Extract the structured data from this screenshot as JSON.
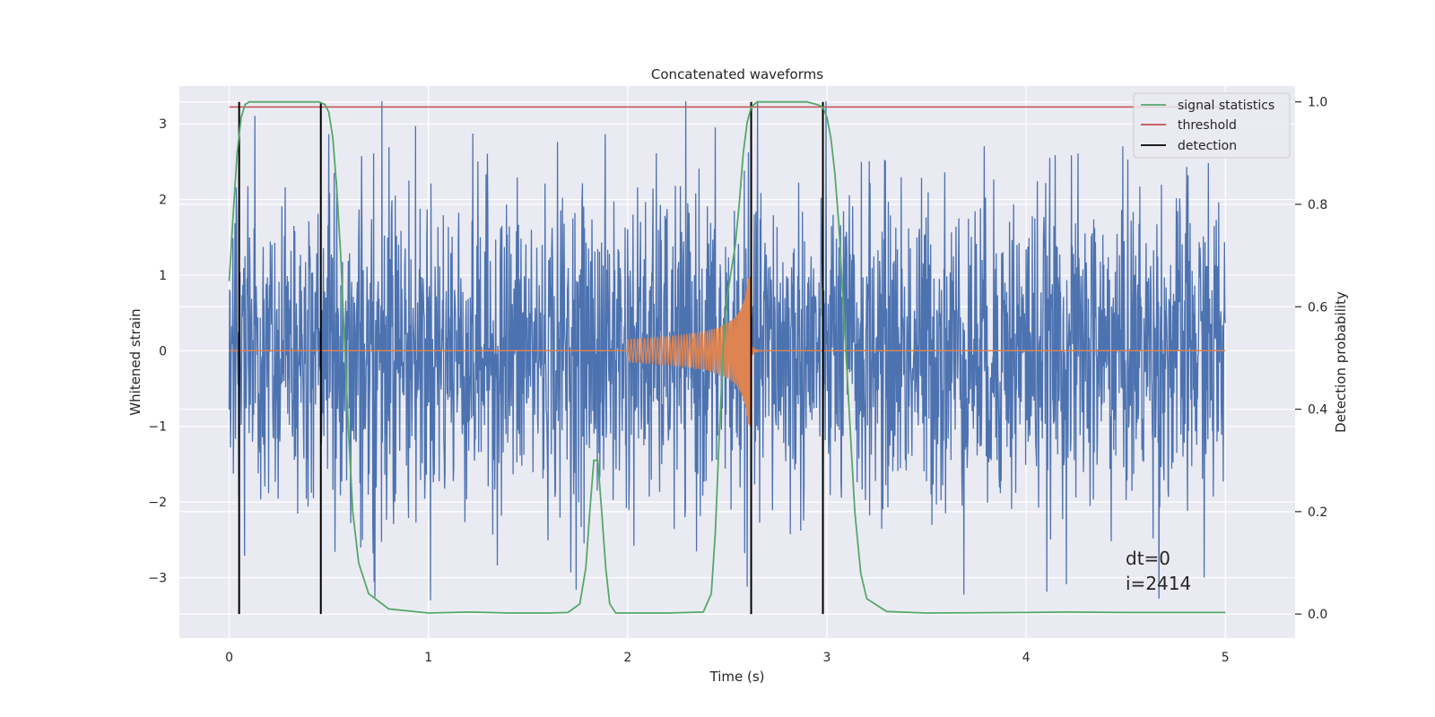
{
  "chart_data": {
    "type": "line",
    "title": "Concatenated waveforms",
    "xlabel": "Time (s)",
    "ylabel": "Whitened strain",
    "ylabel_right": "Detection probability",
    "xlim": [
      -0.25,
      5.35
    ],
    "ylim": [
      -3.8,
      3.5
    ],
    "ylim_right": [
      -0.047,
      1.031
    ],
    "xticks": [
      0,
      1,
      2,
      3,
      4,
      5
    ],
    "yticks": [
      -3,
      -2,
      -1,
      0,
      1,
      2,
      3
    ],
    "yticks_right": [
      0.0,
      0.2,
      0.4,
      0.6,
      0.8,
      1.0
    ],
    "xtick_labels": [
      "0",
      "1",
      "2",
      "3",
      "4",
      "5"
    ],
    "ytick_labels": [
      "−3",
      "−2",
      "−1",
      "0",
      "1",
      "2",
      "3"
    ],
    "ytick_right_labels": [
      "0.0",
      "0.2",
      "0.4",
      "0.6",
      "0.8",
      "1.0"
    ],
    "grid": true,
    "legend_position": "top-right",
    "colors": {
      "background": "#eaeaf2",
      "grid": "#ffffff",
      "strain": "#4c72b0",
      "template": "#dd8452",
      "signal_statistics": "#55a868",
      "threshold": "#c44e52",
      "detection": "#000000"
    },
    "series": [
      {
        "name": "",
        "axis": "left",
        "description_kind": "whitened strain noise",
        "x_range": [
          0,
          5
        ],
        "amplitude_envelope": 3.3
      },
      {
        "name": "",
        "axis": "left",
        "description_kind": "chirp template",
        "x_range": [
          2.0,
          2.62
        ],
        "peak_amplitude": 1.0
      },
      {
        "name": "signal statistics",
        "axis": "right",
        "x": [
          0.0,
          0.02,
          0.04,
          0.06,
          0.08,
          0.1,
          0.2,
          0.3,
          0.4,
          0.45,
          0.48,
          0.5,
          0.52,
          0.54,
          0.56,
          0.58,
          0.6,
          0.62,
          0.65,
          0.7,
          0.8,
          1.0,
          1.2,
          1.3,
          1.4,
          1.6,
          1.7,
          1.76,
          1.79,
          1.81,
          1.83,
          1.85,
          1.87,
          1.89,
          1.91,
          1.94,
          2.0,
          2.2,
          2.38,
          2.42,
          2.44,
          2.46,
          2.48,
          2.5,
          2.52,
          2.54,
          2.56,
          2.58,
          2.6,
          2.62,
          2.65,
          2.7,
          2.8,
          2.9,
          2.95,
          2.98,
          3.0,
          3.02,
          3.04,
          3.06,
          3.08,
          3.1,
          3.12,
          3.14,
          3.17,
          3.2,
          3.3,
          3.5,
          4.0,
          4.2,
          4.5,
          5.0
        ],
        "values": [
          0.65,
          0.78,
          0.9,
          0.97,
          0.995,
          1.0,
          1.0,
          1.0,
          1.0,
          1.0,
          0.995,
          0.98,
          0.93,
          0.83,
          0.7,
          0.52,
          0.35,
          0.2,
          0.1,
          0.04,
          0.01,
          0.002,
          0.004,
          0.003,
          0.002,
          0.002,
          0.003,
          0.02,
          0.09,
          0.2,
          0.3,
          0.3,
          0.2,
          0.09,
          0.02,
          0.002,
          0.002,
          0.002,
          0.004,
          0.04,
          0.16,
          0.35,
          0.52,
          0.62,
          0.67,
          0.72,
          0.8,
          0.9,
          0.96,
          0.99,
          1.0,
          1.0,
          1.0,
          1.0,
          0.995,
          0.99,
          0.97,
          0.93,
          0.86,
          0.76,
          0.62,
          0.48,
          0.34,
          0.2,
          0.08,
          0.03,
          0.005,
          0.002,
          0.003,
          0.004,
          0.003,
          0.003
        ]
      },
      {
        "name": "threshold",
        "axis": "right",
        "x": [
          0,
          5
        ],
        "values": [
          0.99,
          0.99
        ]
      },
      {
        "name": "detection",
        "axis": "right",
        "type": "vlines",
        "x": [
          0.05,
          0.46,
          2.62,
          2.98
        ],
        "ymin": 0,
        "ymax": 1
      }
    ],
    "annotations": [
      "dt=0",
      "i=2414"
    ]
  }
}
